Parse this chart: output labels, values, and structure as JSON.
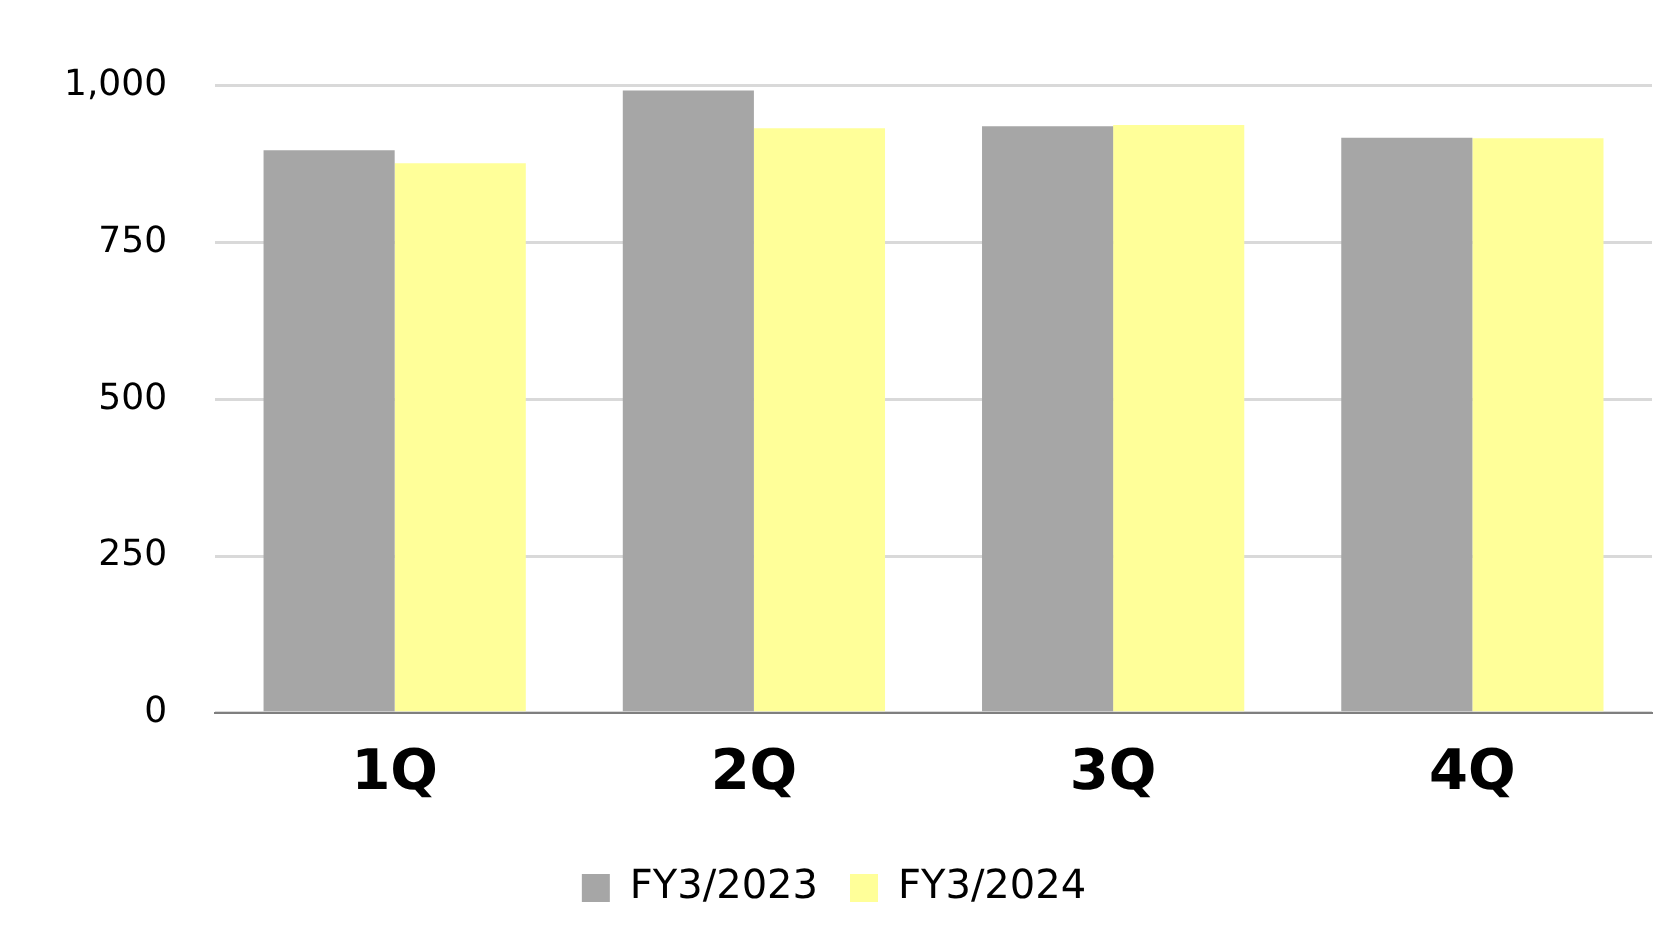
{
  "chart_data": {
    "type": "bar",
    "categories": [
      "1Q",
      "2Q",
      "3Q",
      "4Q"
    ],
    "series": [
      {
        "name": "FY3/2023",
        "color": "#a6a6a6",
        "values": [
          897,
          992,
          935,
          917
        ]
      },
      {
        "name": "FY3/2024",
        "color": "#ffff99",
        "values": [
          876,
          932,
          937,
          916
        ]
      }
    ],
    "ylim": [
      0,
      1000
    ],
    "yticks": [
      0,
      {
        "value": 250,
        "label": "250"
      },
      {
        "value": 500,
        "label": "500"
      },
      {
        "value": 750,
        "label": "750"
      },
      {
        "value": 1000,
        "label": "1,000"
      }
    ],
    "grid": "y",
    "legend": "bottom"
  }
}
